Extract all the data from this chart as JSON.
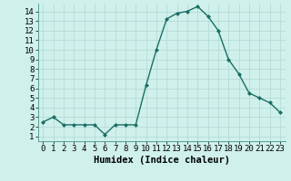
{
  "x": [
    0,
    1,
    2,
    3,
    4,
    5,
    6,
    7,
    8,
    9,
    10,
    11,
    12,
    13,
    14,
    15,
    16,
    17,
    18,
    19,
    20,
    21,
    22,
    23
  ],
  "y": [
    2.5,
    3.0,
    2.2,
    2.2,
    2.2,
    2.2,
    1.2,
    2.2,
    2.2,
    2.2,
    6.3,
    10.0,
    13.2,
    13.8,
    14.0,
    14.5,
    13.5,
    12.0,
    9.0,
    7.5,
    5.5,
    5.0,
    4.5,
    3.5
  ],
  "line_color": "#1a6e64",
  "marker": "D",
  "marker_size": 2.0,
  "bg_color": "#cff0eb",
  "grid_color": "#b0d8d2",
  "xlabel": "Humidex (Indice chaleur)",
  "xlim": [
    -0.5,
    23.5
  ],
  "ylim": [
    0.5,
    14.8
  ],
  "yticks": [
    1,
    2,
    3,
    4,
    5,
    6,
    7,
    8,
    9,
    10,
    11,
    12,
    13,
    14
  ],
  "xticks": [
    0,
    1,
    2,
    3,
    4,
    5,
    6,
    7,
    8,
    9,
    10,
    11,
    12,
    13,
    14,
    15,
    16,
    17,
    18,
    19,
    20,
    21,
    22,
    23
  ],
  "tick_fontsize": 6.5,
  "xlabel_fontsize": 7.5,
  "linewidth": 1.0
}
